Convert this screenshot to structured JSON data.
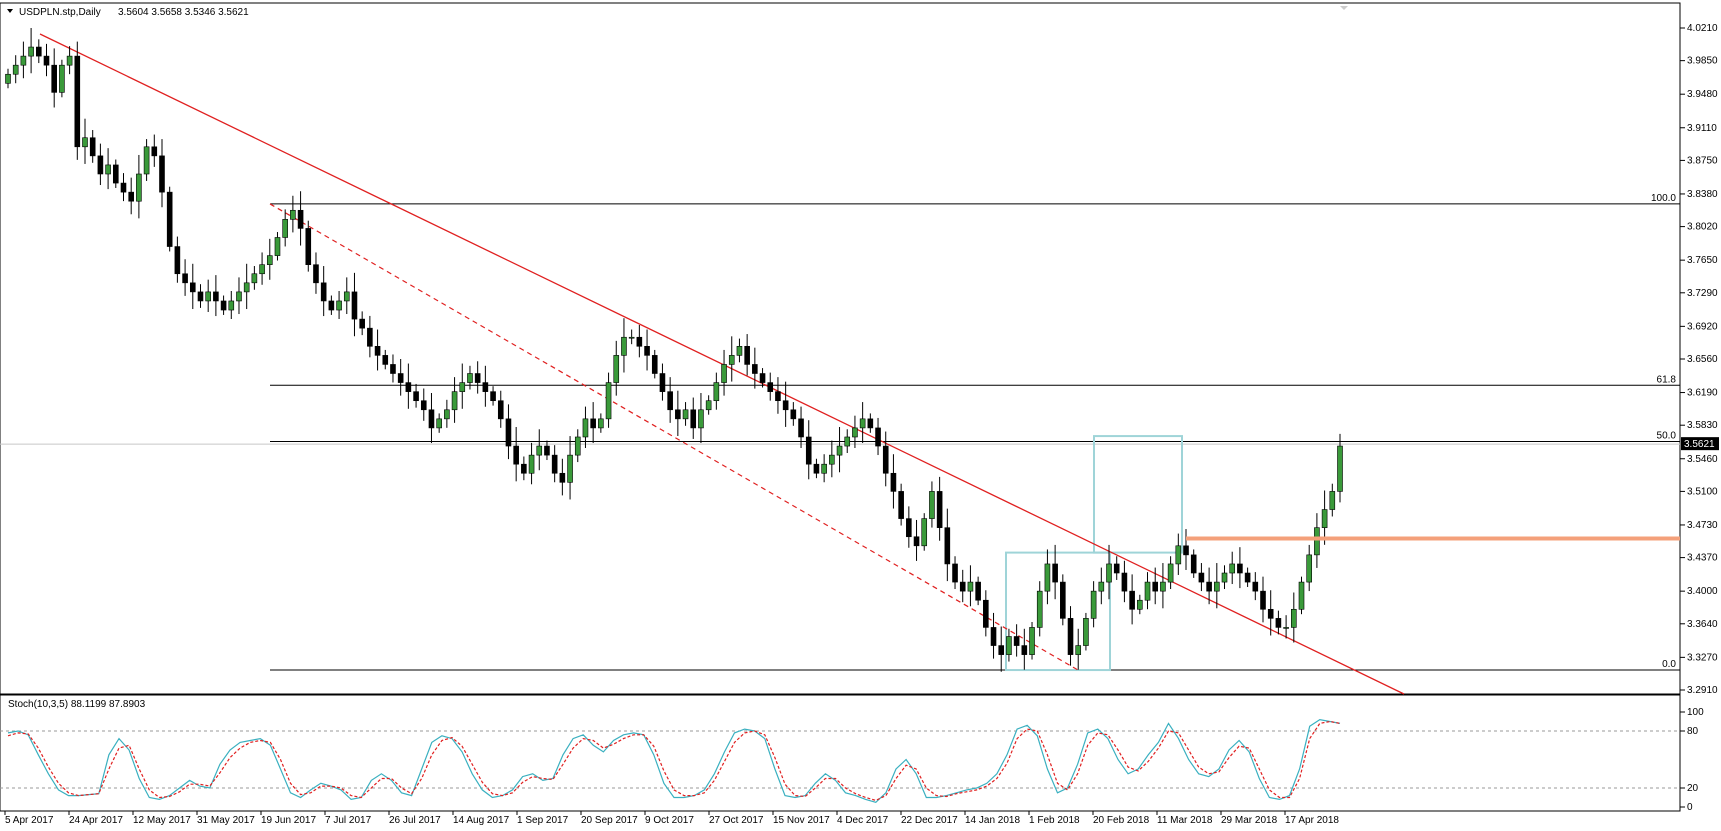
{
  "window": {
    "title": "USDPLN.stp,Daily",
    "ohlc": "3.5604 3.5658 3.5346 3.5621",
    "menu_icon": "triangle-down-icon"
  },
  "colors": {
    "bull": "#3a9a3a",
    "bear": "#000000",
    "trendline": "#e02020",
    "fib": "#000000",
    "resistance": "#f4a07a",
    "box": "#9fd4d8",
    "stoch_main": "#3ab0c0",
    "stoch_signal": "#e02020",
    "price_tag_bg": "#000000"
  },
  "chart_data": [
    {
      "type": "candlestick",
      "symbol": "USDPLN.stp",
      "timeframe": "Daily",
      "last": {
        "open": 3.5604,
        "high": 3.5658,
        "low": 3.5346,
        "close": 3.5621
      },
      "ylim": [
        3.291,
        4.021
      ],
      "y_ticks": [
        "4.0210",
        "3.9850",
        "3.9480",
        "3.9110",
        "3.8750",
        "3.8380",
        "3.8020",
        "3.7650",
        "3.7290",
        "3.6920",
        "3.6560",
        "3.6190",
        "3.5830",
        "3.5460",
        "3.5100",
        "3.4730",
        "3.4370",
        "3.4000",
        "3.3640",
        "3.3270",
        "3.2910"
      ],
      "current_price_label": "3.5621",
      "x_ticks": [
        "5 Apr 2017",
        "24 Apr 2017",
        "12 May 2017",
        "31 May 2017",
        "19 Jun 2017",
        "7 Jul 2017",
        "26 Jul 2017",
        "14 Aug 2017",
        "1 Sep 2017",
        "20 Sep 2017",
        "9 Oct 2017",
        "27 Oct 2017",
        "15 Nov 2017",
        "4 Dec 2017",
        "22 Dec 2017",
        "14 Jan 2018",
        "1 Feb 2018",
        "20 Feb 2018",
        "11 Mar 2018",
        "29 Mar 2018",
        "17 Apr 2018"
      ],
      "fibonacci": [
        {
          "label": "100.0",
          "price": 3.827
        },
        {
          "label": "61.8",
          "price": 3.627
        },
        {
          "label": "50.0",
          "price": 3.565
        },
        {
          "label": "0.0",
          "price": 3.313
        }
      ],
      "resistance_level": 3.458,
      "closes": [
        3.97,
        3.98,
        3.99,
        4.0,
        3.99,
        3.98,
        3.95,
        3.98,
        3.99,
        3.89,
        3.9,
        3.88,
        3.86,
        3.87,
        3.85,
        3.84,
        3.83,
        3.86,
        3.89,
        3.88,
        3.84,
        3.78,
        3.75,
        3.74,
        3.73,
        3.72,
        3.73,
        3.72,
        3.71,
        3.72,
        3.73,
        3.74,
        3.75,
        3.76,
        3.77,
        3.79,
        3.81,
        3.82,
        3.8,
        3.76,
        3.74,
        3.72,
        3.71,
        3.72,
        3.73,
        3.7,
        3.69,
        3.67,
        3.66,
        3.65,
        3.64,
        3.63,
        3.62,
        3.61,
        3.6,
        3.58,
        3.59,
        3.6,
        3.62,
        3.63,
        3.64,
        3.63,
        3.62,
        3.61,
        3.59,
        3.56,
        3.54,
        3.53,
        3.55,
        3.56,
        3.55,
        3.53,
        3.52,
        3.55,
        3.57,
        3.59,
        3.58,
        3.59,
        3.63,
        3.66,
        3.68,
        3.68,
        3.67,
        3.66,
        3.64,
        3.62,
        3.6,
        3.59,
        3.6,
        3.58,
        3.6,
        3.61,
        3.63,
        3.65,
        3.66,
        3.67,
        3.65,
        3.64,
        3.63,
        3.62,
        3.61,
        3.6,
        3.59,
        3.57,
        3.54,
        3.53,
        3.54,
        3.55,
        3.56,
        3.57,
        3.58,
        3.59,
        3.58,
        3.56,
        3.53,
        3.51,
        3.48,
        3.46,
        3.45,
        3.48,
        3.51,
        3.47,
        3.43,
        3.41,
        3.4,
        3.41,
        3.39,
        3.36,
        3.34,
        3.33,
        3.35,
        3.34,
        3.33,
        3.36,
        3.4,
        3.43,
        3.41,
        3.37,
        3.33,
        3.34,
        3.37,
        3.4,
        3.41,
        3.43,
        3.42,
        3.4,
        3.38,
        3.39,
        3.41,
        3.4,
        3.41,
        3.43,
        3.45,
        3.44,
        3.42,
        3.41,
        3.4,
        3.41,
        3.42,
        3.43,
        3.42,
        3.41,
        3.4,
        3.38,
        3.37,
        3.36,
        3.36,
        3.38,
        3.41,
        3.44,
        3.47,
        3.49,
        3.51,
        3.56
      ],
      "trendlines": [
        {
          "style": "solid",
          "from": {
            "x": "5 Apr 2017",
            "price": 4.021
          },
          "to": {
            "x": "beyond 17 Apr 2018",
            "price": 3.291
          }
        },
        {
          "style": "dashed",
          "from": {
            "x": "19 Jun 2017",
            "price": 3.827
          },
          "to": {
            "x": "1 Feb 2018",
            "price": 3.313
          }
        }
      ],
      "boxes": 2
    },
    {
      "type": "line",
      "title": "Stoch(10,3,5) 88.1199 87.8903",
      "ylim": [
        0,
        100
      ],
      "y_ticks": [
        "100",
        "80",
        "20",
        "0"
      ],
      "levels": [
        80,
        20
      ],
      "series": [
        {
          "name": "main",
          "values": [
            78,
            80,
            76,
            55,
            35,
            18,
            12,
            12,
            13,
            14,
            55,
            72,
            60,
            30,
            10,
            8,
            12,
            20,
            28,
            22,
            20,
            45,
            60,
            68,
            70,
            72,
            65,
            40,
            15,
            10,
            18,
            25,
            22,
            18,
            8,
            10,
            28,
            35,
            28,
            15,
            12,
            40,
            68,
            75,
            72,
            58,
            35,
            18,
            10,
            12,
            18,
            32,
            35,
            28,
            30,
            55,
            72,
            76,
            65,
            58,
            70,
            76,
            78,
            76,
            55,
            25,
            10,
            10,
            12,
            18,
            35,
            58,
            78,
            82,
            80,
            72,
            40,
            12,
            10,
            12,
            25,
            35,
            28,
            15,
            12,
            8,
            5,
            15,
            40,
            50,
            35,
            10,
            10,
            12,
            15,
            18,
            20,
            25,
            35,
            55,
            82,
            86,
            75,
            40,
            15,
            20,
            45,
            78,
            82,
            72,
            50,
            35,
            40,
            55,
            68,
            88,
            72,
            50,
            35,
            32,
            40,
            60,
            70,
            58,
            30,
            10,
            8,
            12,
            40,
            85,
            92,
            90,
            88
          ]
        },
        {
          "name": "signal",
          "values": [
            75,
            78,
            77,
            62,
            42,
            25,
            15,
            12,
            13,
            14,
            40,
            62,
            65,
            40,
            18,
            10,
            11,
            16,
            24,
            24,
            22,
            36,
            52,
            62,
            68,
            70,
            68,
            50,
            25,
            13,
            15,
            22,
            22,
            20,
            12,
            10,
            20,
            30,
            30,
            20,
            14,
            30,
            55,
            70,
            73,
            64,
            45,
            26,
            14,
            12,
            15,
            26,
            32,
            30,
            29,
            45,
            62,
            72,
            70,
            62,
            66,
            72,
            76,
            76,
            64,
            38,
            18,
            12,
            12,
            15,
            28,
            48,
            68,
            78,
            80,
            76,
            52,
            24,
            12,
            11,
            20,
            30,
            30,
            20,
            14,
            10,
            7,
            12,
            30,
            44,
            40,
            20,
            12,
            11,
            14,
            16,
            18,
            22,
            30,
            46,
            72,
            82,
            80,
            55,
            25,
            18,
            35,
            65,
            78,
            76,
            60,
            42,
            38,
            48,
            62,
            80,
            78,
            60,
            42,
            35,
            37,
            52,
            64,
            62,
            40,
            18,
            10,
            10,
            30,
            72,
            88,
            90,
            88
          ]
        }
      ]
    }
  ]
}
